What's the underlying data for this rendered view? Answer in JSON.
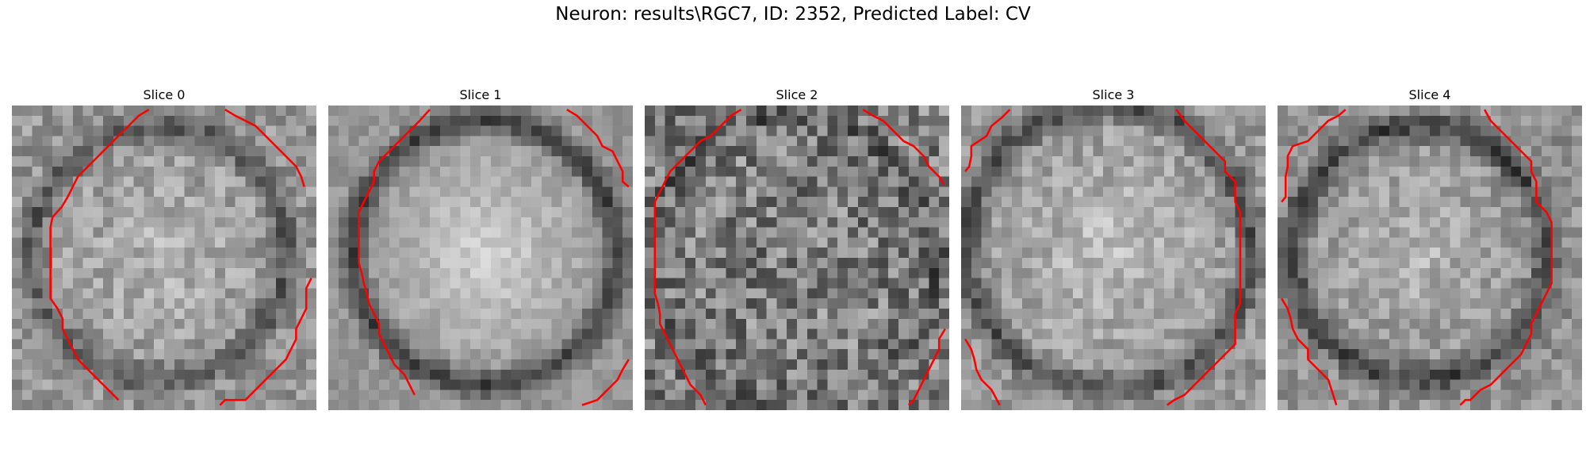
{
  "figure": {
    "title": "Neuron: results\\RGC7, ID: 2352, Predicted Label: CV"
  },
  "contour_color": "#ff0000",
  "colormap": "gray",
  "slices": [
    {
      "title": "Slice 0",
      "cell_shape": "round",
      "texture": "speckled",
      "bright_region": "center"
    },
    {
      "title": "Slice 1",
      "cell_shape": "round",
      "texture": "smooth",
      "bright_region": "center"
    },
    {
      "title": "Slice 2",
      "cell_shape": "round",
      "texture": "noisy",
      "bright_region": "faint"
    },
    {
      "title": "Slice 3",
      "cell_shape": "round",
      "texture": "speckled",
      "bright_region": "center"
    },
    {
      "title": "Slice 4",
      "cell_shape": "round",
      "texture": "speckled",
      "bright_region": "center"
    }
  ]
}
